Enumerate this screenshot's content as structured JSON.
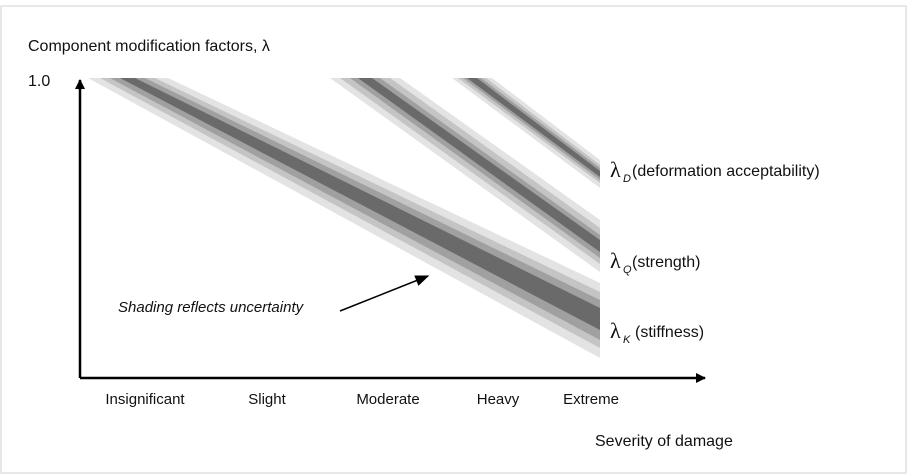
{
  "title": "Component  modification factors, λ",
  "y_top_label": "1.0",
  "categories": [
    "Insignificant",
    "Slight",
    "Moderate",
    "Heavy",
    "Extreme"
  ],
  "x_axis_label": "Severity of damage",
  "annotation": "Shading reflects uncertainty",
  "curves": [
    {
      "symbol": "λ",
      "subscript": "D",
      "label": "(deformation acceptability)"
    },
    {
      "symbol": "λ",
      "subscript": "Q",
      "label": "(strength)"
    },
    {
      "symbol": "λ",
      "subscript": "K",
      "label": "(stiffness)"
    }
  ]
}
